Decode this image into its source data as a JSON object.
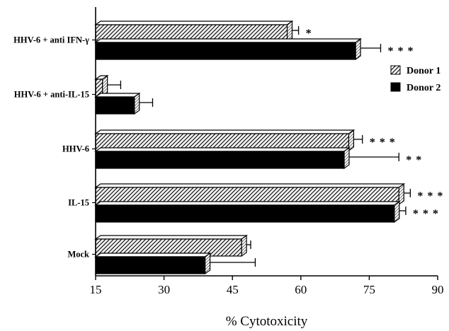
{
  "chart_data": {
    "type": "bar",
    "orientation": "horizontal",
    "style": "3d",
    "title": "",
    "xlabel": "% Cytotoxicity",
    "ylabel": "",
    "xlim": [
      15,
      90
    ],
    "xticks": [
      "15",
      "30",
      "45",
      "60",
      "75",
      "90"
    ],
    "categories": [
      "HHV-6 + anti IFN-γ",
      "HHV-6 + anti-IL-15",
      "HHV-6",
      "IL-15",
      "Mock"
    ],
    "series": [
      {
        "name": "Donor 1",
        "pattern": "hatched",
        "values": [
          57,
          16.5,
          70.5,
          81.5,
          47
        ],
        "errors": [
          2.5,
          4,
          3,
          2.5,
          2
        ],
        "significance": [
          "*",
          "",
          "* * *",
          "* * *",
          ""
        ]
      },
      {
        "name": "Donor 2",
        "pattern": "solid",
        "values": [
          72,
          23.5,
          69.5,
          80.5,
          39
        ],
        "errors": [
          5.5,
          4,
          12,
          2.5,
          11
        ],
        "significance": [
          "* * *",
          "",
          "* *",
          "* * *",
          ""
        ]
      }
    ],
    "legend_position": "right",
    "grid": false
  }
}
